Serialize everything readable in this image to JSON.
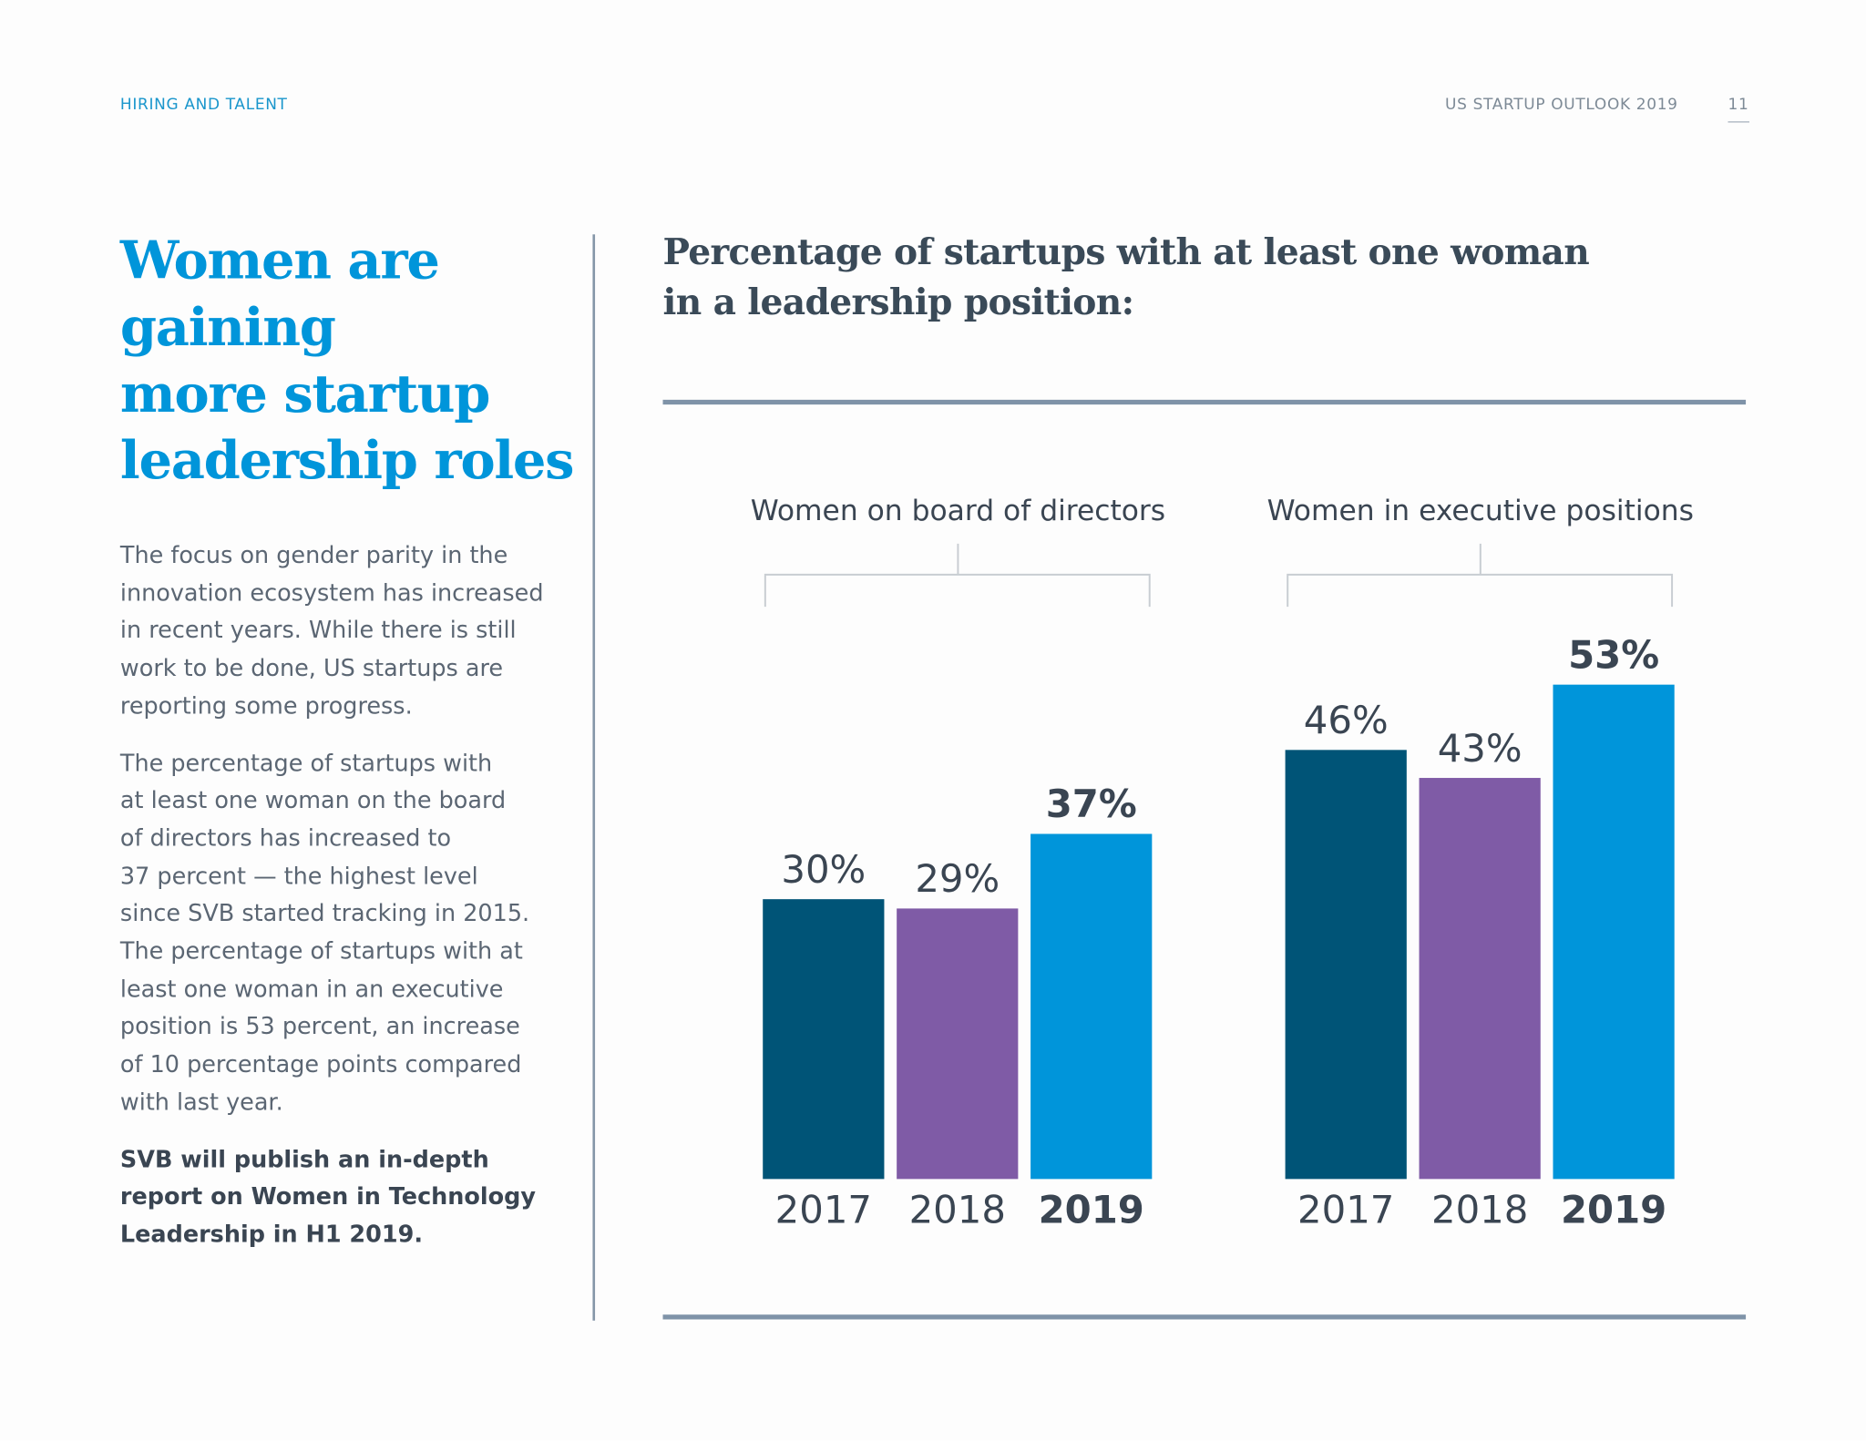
{
  "header": {
    "section": "HIRING AND TALENT",
    "publication": "US STARTUP OUTLOOK 2019",
    "page": "11"
  },
  "headline": {
    "lines": [
      "Women are",
      "gaining",
      "more startup",
      "leadership roles"
    ]
  },
  "body": {
    "paragraphs": [
      {
        "lines": [
          "The focus on gender parity in the",
          "innovation ecosystem has increased",
          "in recent years. While there is still",
          "work to be done, US startups are",
          "reporting some progress."
        ]
      },
      {
        "lines": [
          "The percentage of startups with",
          "at least one woman on the board",
          "of directors has increased to",
          "37 percent — the highest level",
          "since SVB started tracking in 2015.",
          "The percentage of startups with at",
          "least one woman in an executive",
          "position is 53 percent, an increase",
          "of 10 percentage points compared",
          "with last year."
        ]
      }
    ],
    "callout": {
      "lines": [
        "SVB will publish an in-depth",
        "report on Women in Technology",
        "Leadership in H1 2019."
      ]
    }
  },
  "chart_heading": {
    "lines": [
      "Percentage of startups with at least one woman",
      "in a leadership position:"
    ]
  },
  "chart_data": [
    {
      "type": "bar",
      "title": "Women on board of directors",
      "categories": [
        "2017",
        "2018",
        "2019"
      ],
      "values": [
        30,
        29,
        37
      ],
      "value_labels": [
        "30%",
        "29%",
        "37%"
      ],
      "colors": [
        "#005477",
        "#7f5ba6",
        "#0095da"
      ]
    },
    {
      "type": "bar",
      "title": "Women in executive positions",
      "categories": [
        "2017",
        "2018",
        "2019"
      ],
      "values": [
        46,
        43,
        53
      ],
      "value_labels": [
        "46%",
        "43%",
        "53%"
      ],
      "colors": [
        "#005477",
        "#7f5ba6",
        "#0095da"
      ]
    }
  ]
}
